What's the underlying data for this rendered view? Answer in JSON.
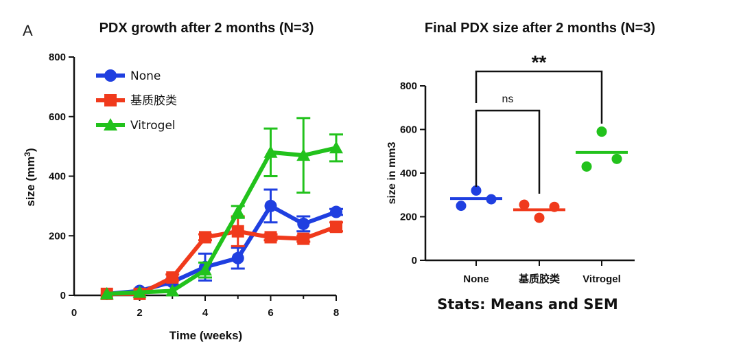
{
  "panel_letter": "A",
  "colors": {
    "None": "#1f3fe0",
    "基质胶类": "#f03a1c",
    "Vitrogel": "#22c21c",
    "axis": "#111111"
  },
  "chart_data": [
    {
      "type": "line",
      "title": "PDX growth after 2 months (N=3)",
      "xlabel": "Time (weeks)",
      "ylabel": "size (mm3)",
      "xlim": [
        0,
        8
      ],
      "ylim": [
        0,
        800
      ],
      "xticks": [
        0,
        2,
        4,
        6,
        8
      ],
      "yticks": [
        0,
        200,
        400,
        600,
        800
      ],
      "legend_position": "top-left",
      "x": [
        1,
        2,
        3,
        4,
        5,
        6,
        7,
        8
      ],
      "series": [
        {
          "name": "None",
          "marker": "circle",
          "values": [
            5,
            15,
            45,
            95,
            125,
            300,
            240,
            280
          ],
          "errors": [
            5,
            8,
            10,
            45,
            35,
            55,
            25,
            10
          ]
        },
        {
          "name": "基质胶类",
          "marker": "square",
          "values": [
            5,
            5,
            60,
            195,
            215,
            195,
            190,
            230
          ],
          "errors": [
            5,
            5,
            10,
            10,
            50,
            10,
            10,
            15
          ]
        },
        {
          "name": "Vitrogel",
          "marker": "triangle",
          "values": [
            5,
            10,
            15,
            85,
            280,
            480,
            470,
            495
          ],
          "errors": [
            5,
            5,
            5,
            25,
            20,
            80,
            125,
            45
          ]
        }
      ]
    },
    {
      "type": "scatter",
      "title": "Final PDX size after 2 months (N=3)",
      "xlabel": "",
      "ylabel": "size in mm3",
      "ylim": [
        0,
        800
      ],
      "yticks": [
        0,
        200,
        400,
        600,
        800
      ],
      "categories": [
        "None",
        "基质胶类",
        "Vitrogel"
      ],
      "series": [
        {
          "name": "None",
          "points": [
            250,
            320,
            280
          ],
          "mean": 283
        },
        {
          "name": "基质胶类",
          "points": [
            255,
            195,
            245
          ],
          "mean": 232
        },
        {
          "name": "Vitrogel",
          "points": [
            430,
            590,
            465
          ],
          "mean": 495
        }
      ],
      "comparisons": [
        {
          "from": "None",
          "to": "基质胶类",
          "label": "ns"
        },
        {
          "from": "None",
          "to": "Vitrogel",
          "label": "**"
        }
      ],
      "footnote": "Stats: Means and SEM"
    }
  ]
}
